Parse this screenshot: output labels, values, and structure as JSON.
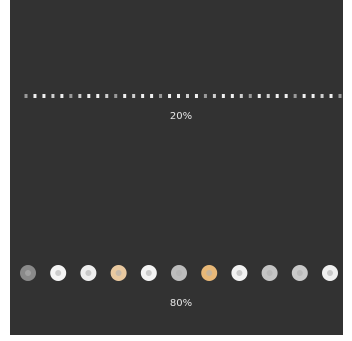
{
  "rows": [
    {
      "label": "20%"
    },
    {
      "label": "80%"
    }
  ]
}
